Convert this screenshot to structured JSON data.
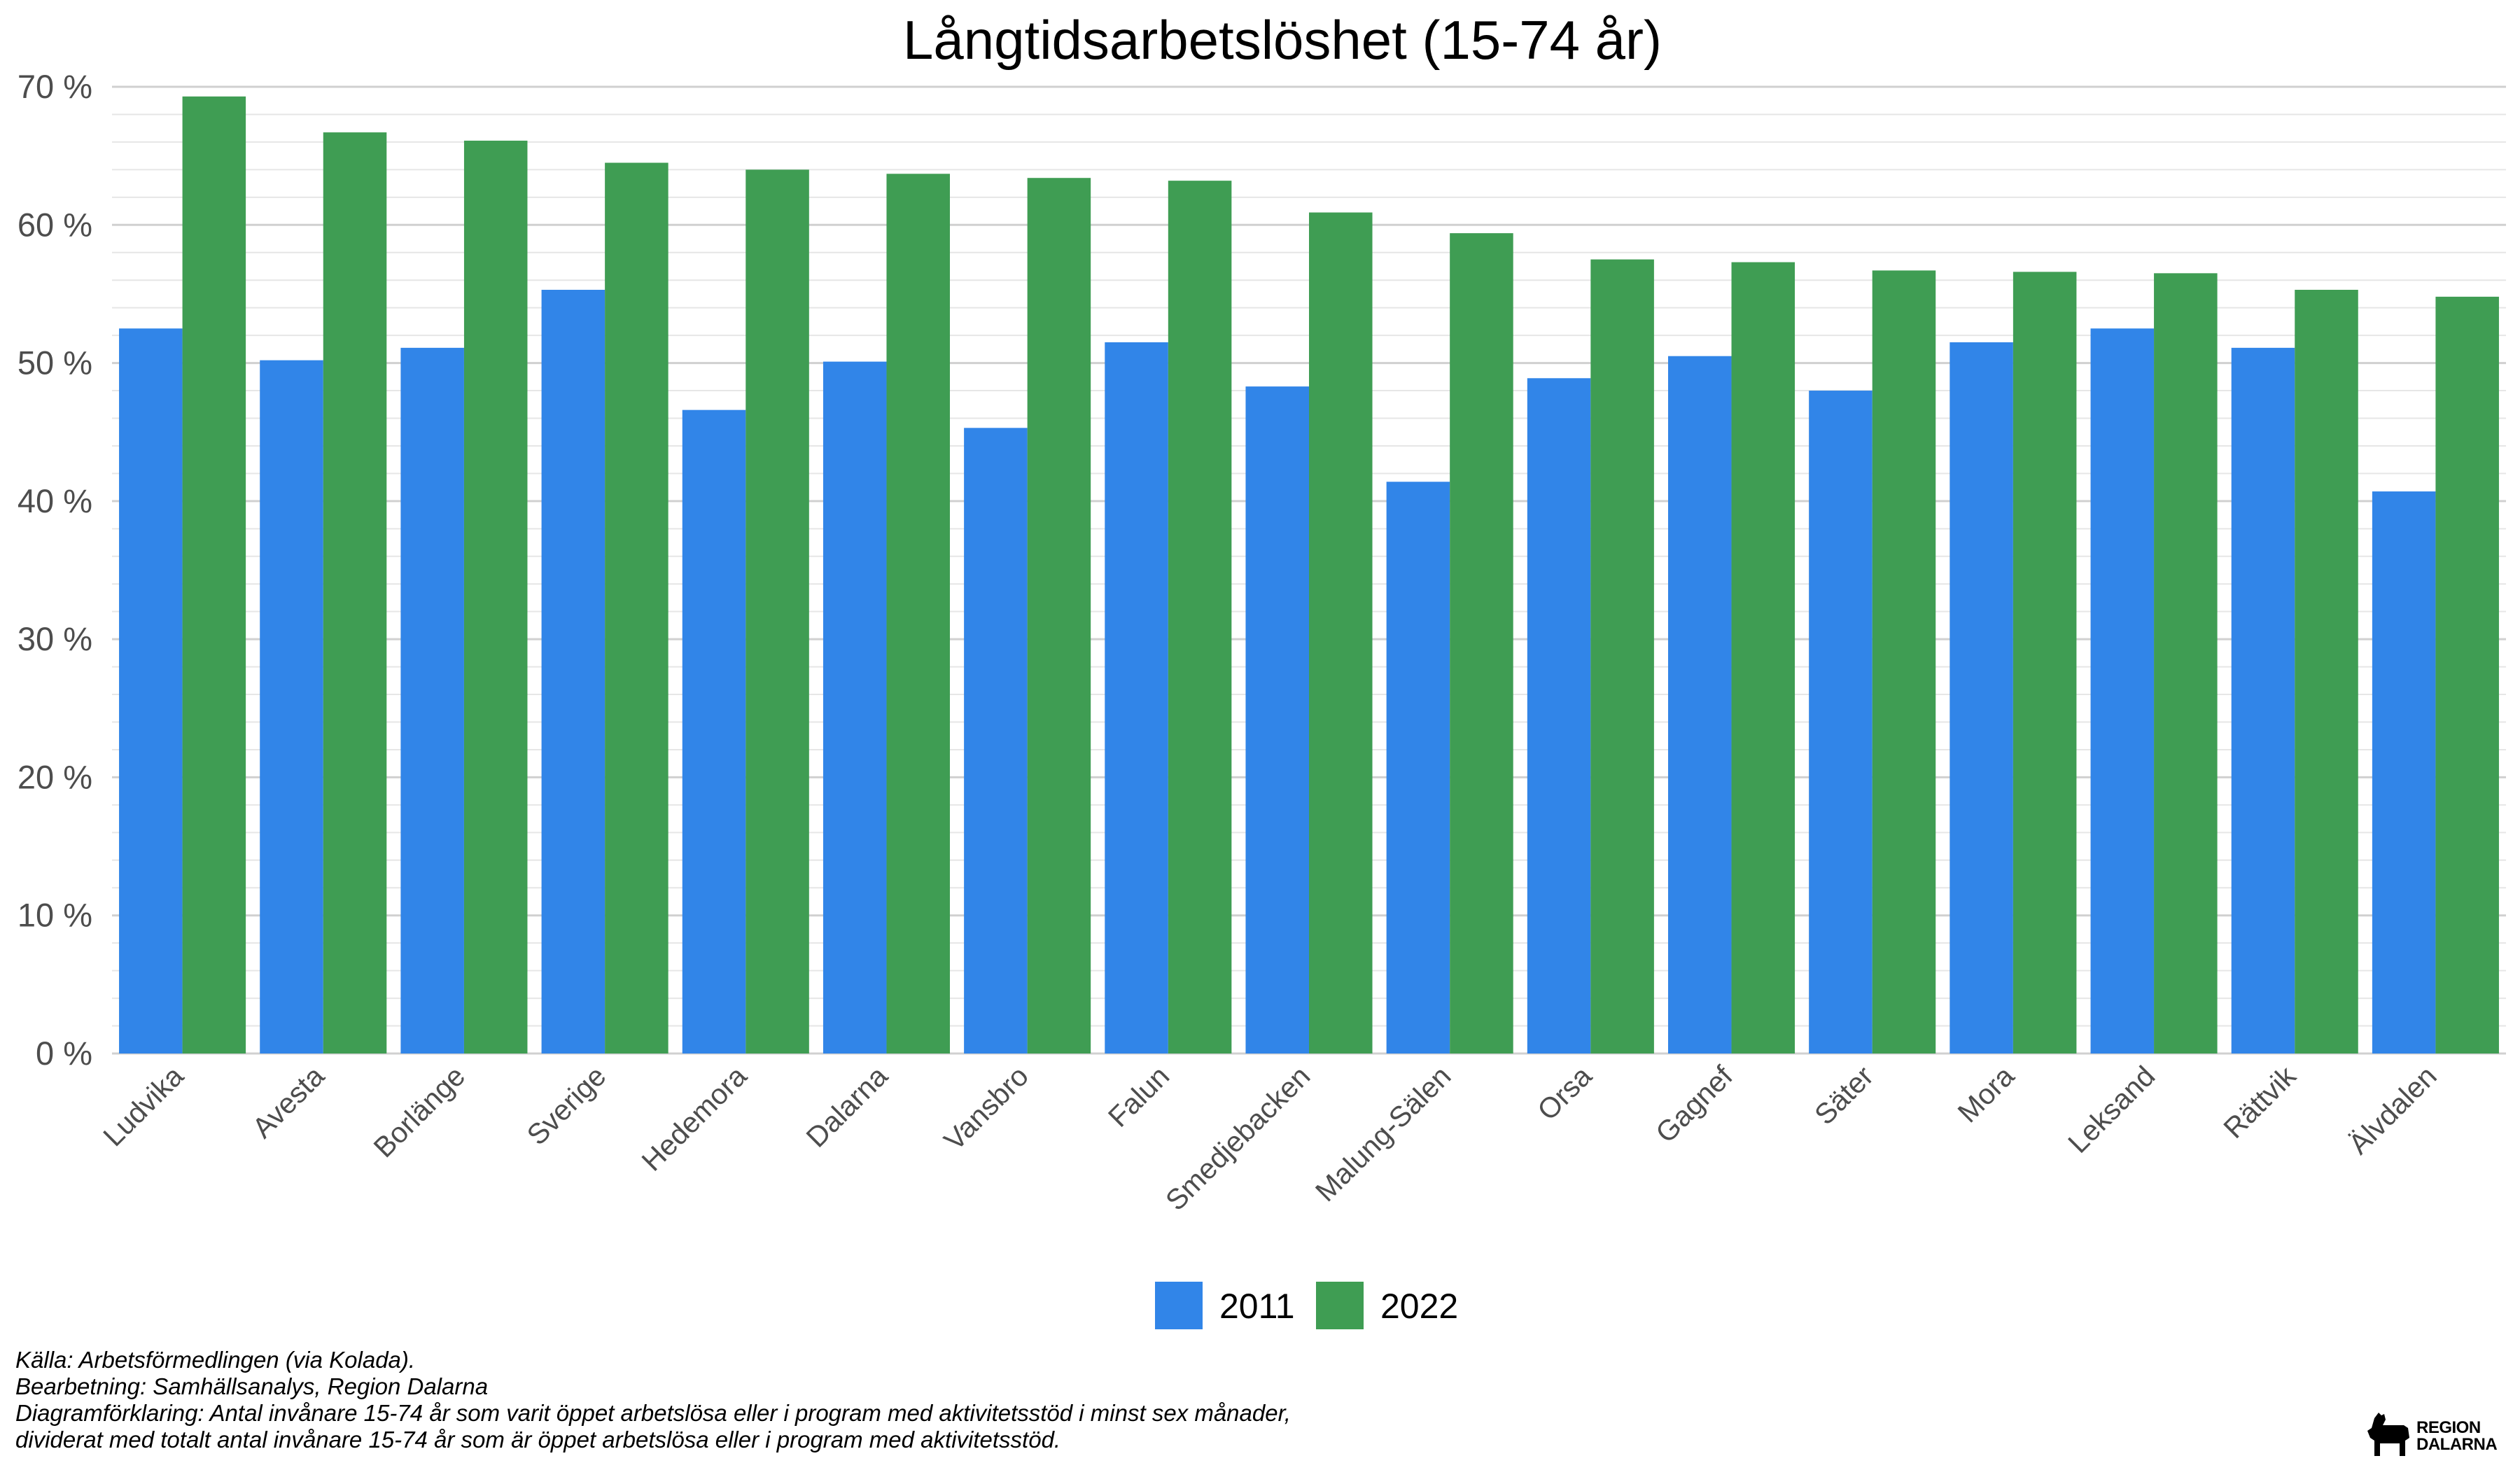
{
  "chart_data": {
    "type": "bar",
    "title": "Långtidsarbetslöshet (15-74 år)",
    "categories": [
      "Ludvika",
      "Avesta",
      "Borlänge",
      "Sverige",
      "Hedemora",
      "Dalarna",
      "Vansbro",
      "Falun",
      "Smedjebacken",
      "Malung-Sälen",
      "Orsa",
      "Gagnef",
      "Säter",
      "Mora",
      "Leksand",
      "Rättvik",
      "Älvdalen"
    ],
    "series": [
      {
        "name": "2011",
        "color": "#3185e8",
        "values": [
          52.5,
          50.2,
          51.1,
          55.3,
          46.6,
          50.1,
          45.3,
          51.5,
          48.3,
          41.4,
          48.9,
          50.5,
          48.0,
          51.5,
          52.5,
          51.1,
          40.7
        ]
      },
      {
        "name": "2022",
        "color": "#3f9d53",
        "values": [
          69.3,
          66.7,
          66.1,
          64.5,
          64.0,
          63.7,
          63.4,
          63.2,
          60.9,
          59.4,
          57.5,
          57.3,
          56.7,
          56.6,
          56.5,
          55.3,
          54.8
        ]
      }
    ],
    "ylim": [
      0,
      70
    ],
    "yticks": [
      0,
      10,
      20,
      30,
      40,
      50,
      60,
      70
    ],
    "ytick_labels": [
      "0 %",
      "10 %",
      "20 %",
      "30 %",
      "40 %",
      "50 %",
      "60 %",
      "70 %"
    ],
    "xlabel": "",
    "ylabel": "",
    "grid": true,
    "legend_position": "bottom"
  },
  "footnotes": {
    "source": "Källa: Arbetsförmedlingen (via Kolada).",
    "processing": "Bearbetning: Samhällsanalys, Region Dalarna",
    "explanation_1": "Diagramförklaring: Antal invånare 15-74 år som varit öppet arbetslösa eller i program med aktivitetsstöd i minst sex månader,",
    "explanation_2": "dividerat med totalt antal invånare 15-74 år som är öppet arbetslösa eller i program med aktivitetsstöd."
  },
  "logo": {
    "line1": "REGION",
    "line2": "DALARNA"
  }
}
